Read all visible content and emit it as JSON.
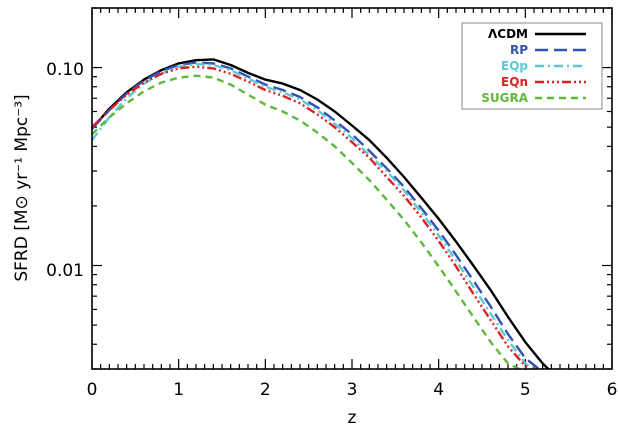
{
  "chart_data": {
    "type": "line",
    "title": "",
    "xlabel": "z",
    "ylabel": "SFRD [M⊙ yr⁻¹ Mpc⁻³]",
    "xlim": [
      0,
      6
    ],
    "ylim": [
      0.003,
      0.2
    ],
    "yscale": "log",
    "x_ticks": [
      0,
      1,
      2,
      3,
      4,
      5,
      6
    ],
    "x_tick_labels": [
      "0",
      "1",
      "2",
      "3",
      "4",
      "5",
      "6"
    ],
    "y_ticks": [
      0.01,
      0.1
    ],
    "y_tick_labels": [
      "0.01",
      "0.10"
    ],
    "grid": false,
    "legend_position": "top-right",
    "series": [
      {
        "name": "ΛCDM",
        "color": "#000000",
        "dash": "solid",
        "x": [
          0,
          0.2,
          0.4,
          0.6,
          0.8,
          1.0,
          1.2,
          1.4,
          1.6,
          1.8,
          2.0,
          2.2,
          2.4,
          2.6,
          2.8,
          3.0,
          3.2,
          3.4,
          3.6,
          3.8,
          4.0,
          4.2,
          4.4,
          4.6,
          4.8,
          5.0,
          5.2,
          5.3
        ],
        "y": [
          0.049,
          0.062,
          0.075,
          0.087,
          0.097,
          0.105,
          0.109,
          0.11,
          0.103,
          0.094,
          0.087,
          0.083,
          0.077,
          0.069,
          0.06,
          0.051,
          0.043,
          0.035,
          0.028,
          0.022,
          0.0172,
          0.0132,
          0.01,
          0.0075,
          0.0055,
          0.0041,
          0.0032,
          0.0029
        ]
      },
      {
        "name": "RP",
        "color": "#3352b5",
        "dash": "long-dash",
        "x": [
          0,
          0.2,
          0.4,
          0.6,
          0.8,
          1.0,
          1.2,
          1.4,
          1.6,
          1.8,
          2.0,
          2.2,
          2.4,
          2.6,
          2.8,
          3.0,
          3.2,
          3.4,
          3.6,
          3.8,
          4.0,
          4.2,
          4.4,
          4.6,
          4.8,
          5.0,
          5.2
        ],
        "y": [
          0.049,
          0.061,
          0.074,
          0.086,
          0.096,
          0.103,
          0.106,
          0.105,
          0.099,
          0.09,
          0.082,
          0.077,
          0.071,
          0.063,
          0.054,
          0.046,
          0.038,
          0.031,
          0.025,
          0.0195,
          0.015,
          0.0113,
          0.0084,
          0.0062,
          0.0045,
          0.0034,
          0.0029
        ]
      },
      {
        "name": "EQp",
        "color": "#5bc8d2",
        "dash": "dash-dot",
        "x": [
          0,
          0.2,
          0.4,
          0.6,
          0.8,
          1.0,
          1.2,
          1.4,
          1.6,
          1.8,
          2.0,
          2.2,
          2.4,
          2.6,
          2.8,
          3.0,
          3.2,
          3.4,
          3.6,
          3.8,
          4.0,
          4.2,
          4.4,
          4.6,
          4.8,
          5.0,
          5.15
        ],
        "y": [
          0.043,
          0.056,
          0.07,
          0.083,
          0.093,
          0.101,
          0.104,
          0.103,
          0.097,
          0.088,
          0.08,
          0.075,
          0.069,
          0.061,
          0.052,
          0.044,
          0.036,
          0.03,
          0.024,
          0.0185,
          0.0142,
          0.0106,
          0.0078,
          0.0057,
          0.0042,
          0.0032,
          0.0029
        ]
      },
      {
        "name": "EQn",
        "color": "#e02020",
        "dash": "dash-dot-dot",
        "x": [
          0,
          0.2,
          0.4,
          0.6,
          0.8,
          1.0,
          1.2,
          1.4,
          1.6,
          1.8,
          2.0,
          2.2,
          2.4,
          2.6,
          2.8,
          3.0,
          3.2,
          3.4,
          3.6,
          3.8,
          4.0,
          4.2,
          4.4,
          4.6,
          4.8,
          5.0,
          5.1
        ],
        "y": [
          0.05,
          0.061,
          0.073,
          0.084,
          0.093,
          0.099,
          0.101,
          0.099,
          0.093,
          0.085,
          0.077,
          0.072,
          0.066,
          0.058,
          0.05,
          0.042,
          0.035,
          0.028,
          0.0225,
          0.0175,
          0.0133,
          0.0099,
          0.0072,
          0.0053,
          0.0039,
          0.0031,
          0.0029
        ]
      },
      {
        "name": "SUGRA",
        "color": "#5db83c",
        "dash": "dash",
        "x": [
          0,
          0.2,
          0.4,
          0.6,
          0.8,
          1.0,
          1.2,
          1.4,
          1.6,
          1.8,
          2.0,
          2.2,
          2.4,
          2.6,
          2.8,
          3.0,
          3.2,
          3.4,
          3.6,
          3.8,
          4.0,
          4.2,
          4.4,
          4.6,
          4.8,
          5.0
        ],
        "y": [
          0.046,
          0.056,
          0.066,
          0.076,
          0.084,
          0.089,
          0.091,
          0.089,
          0.082,
          0.073,
          0.065,
          0.06,
          0.054,
          0.047,
          0.04,
          0.033,
          0.027,
          0.0215,
          0.017,
          0.0131,
          0.0099,
          0.0074,
          0.0055,
          0.0041,
          0.0032,
          0.0029
        ]
      }
    ]
  }
}
